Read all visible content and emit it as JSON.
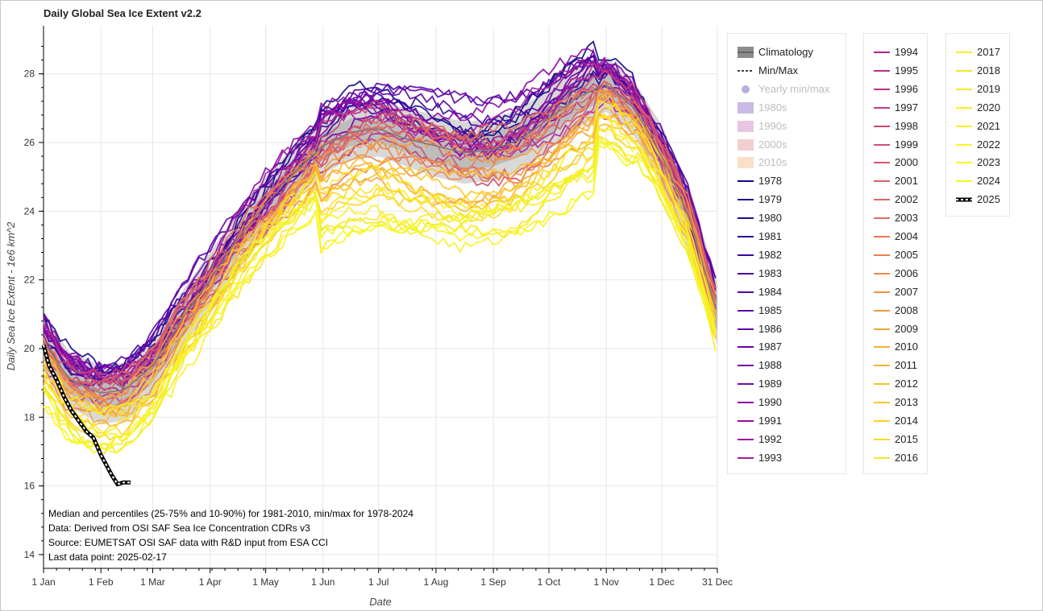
{
  "chart_data": {
    "type": "line",
    "title": "Daily Global Sea Ice Extent v2.2",
    "xlabel": "Date",
    "ylabel": "Daily Sea Ice Extent - 1e6 km^2",
    "ylim": [
      13.6,
      29.4
    ],
    "x_ticks": [
      "1 Jan",
      "1 Feb",
      "1 Mar",
      "1 Apr",
      "1 May",
      "1 Jun",
      "1 Jul",
      "1 Aug",
      "1 Sep",
      "1 Oct",
      "1 Nov",
      "1 Dec",
      "31 Dec"
    ],
    "x_tick_days": [
      1,
      32,
      60,
      91,
      121,
      152,
      182,
      213,
      244,
      274,
      305,
      335,
      365
    ],
    "y_ticks": [
      14,
      16,
      18,
      20,
      22,
      24,
      26,
      28
    ],
    "grid": true,
    "legend_position": "right",
    "annotations": [
      "Median and percentiles (25-75% and 10-90%) for 1981-2010, min/max for 1978-2024",
      "Data: Derived from OSI SAF Sea Ice Concentration CDRs v3",
      "Source: EUMETSAT OSI SAF data with R&D input from ESA CCI",
      "Last data point: 2025-02-17"
    ],
    "legend_special": [
      {
        "label": "Climatology",
        "kind": "band",
        "color": "#8c8c8c",
        "active": true
      },
      {
        "label": "Min/Max",
        "kind": "dashed",
        "color": "#000000",
        "active": true
      },
      {
        "label": "Yearly min/max",
        "kind": "dot",
        "color": "#b3b0db",
        "active": false
      },
      {
        "label": "1980s",
        "kind": "band",
        "color": "#c9bbe3",
        "active": false
      },
      {
        "label": "1990s",
        "kind": "band",
        "color": "#e8c6e4",
        "active": false
      },
      {
        "label": "2000s",
        "kind": "band",
        "color": "#f2cfd0",
        "active": false
      },
      {
        "label": "2010s",
        "kind": "band",
        "color": "#f9e0c6",
        "active": false
      }
    ],
    "years": [
      "1978",
      "1979",
      "1980",
      "1981",
      "1982",
      "1983",
      "1984",
      "1985",
      "1986",
      "1987",
      "1988",
      "1989",
      "1990",
      "1991",
      "1992",
      "1993",
      "1994",
      "1995",
      "1996",
      "1997",
      "1998",
      "1999",
      "2000",
      "2001",
      "2002",
      "2003",
      "2004",
      "2005",
      "2006",
      "2007",
      "2008",
      "2009",
      "2010",
      "2011",
      "2012",
      "2013",
      "2014",
      "2015",
      "2016",
      "2017",
      "2018",
      "2019",
      "2020",
      "2021",
      "2022",
      "2023",
      "2024",
      "2025"
    ],
    "year_colors": [
      "#0d0887",
      "#190788",
      "#240691",
      "#2f0596",
      "#3a049a",
      "#45039e",
      "#4f02a2",
      "#5901a5",
      "#6300a7",
      "#6d00a8",
      "#7701a8",
      "#8104a7",
      "#8a09a5",
      "#930fa2",
      "#9c179e",
      "#a41e9a",
      "#ac2694",
      "#b42e8d",
      "#bb3587",
      "#c13e80",
      "#c8467a",
      "#cd4f73",
      "#d3576c",
      "#d85f66",
      "#dd6860",
      "#e1705a",
      "#e57853",
      "#e9814e",
      "#ed8a47",
      "#f09342",
      "#f39b3c",
      "#f6a437",
      "#f8ad32",
      "#f9b62d",
      "#fbbf2a",
      "#fcc826",
      "#fcd225",
      "#fcdb25",
      "#fbe426",
      "#fbed27",
      "#f3e527",
      "#f5ea26",
      "#f7ee25",
      "#f9f024",
      "#f9f324",
      "#faf523",
      "#f0f921",
      "#000000"
    ],
    "series": [
      {
        "name": "Median 1981-2010",
        "x": [
          1,
          15,
          32,
          45,
          60,
          75,
          91,
          106,
          121,
          136,
          152,
          167,
          182,
          197,
          213,
          228,
          244,
          259,
          274,
          289,
          305,
          320,
          335,
          350,
          365
        ],
        "y": [
          20.2,
          19.1,
          18.7,
          18.8,
          19.5,
          20.8,
          22.0,
          23.2,
          24.2,
          25.1,
          25.9,
          26.3,
          26.4,
          26.1,
          25.9,
          25.7,
          25.8,
          26.1,
          26.7,
          27.3,
          27.7,
          27.0,
          25.6,
          23.8,
          21.0
        ]
      },
      {
        "name": "Climatology 25%",
        "x": [
          1,
          15,
          32,
          45,
          60,
          75,
          91,
          106,
          121,
          136,
          152,
          167,
          182,
          197,
          213,
          228,
          244,
          259,
          274,
          289,
          305,
          320,
          335,
          350,
          365
        ],
        "y": [
          19.8,
          18.7,
          18.3,
          18.3,
          19.0,
          20.3,
          21.6,
          22.8,
          23.8,
          24.7,
          25.5,
          25.9,
          26.0,
          25.7,
          25.4,
          25.2,
          25.3,
          25.6,
          26.2,
          26.8,
          27.3,
          26.6,
          25.1,
          23.2,
          20.5
        ]
      },
      {
        "name": "Climatology 75%",
        "x": [
          1,
          15,
          32,
          45,
          60,
          75,
          91,
          106,
          121,
          136,
          152,
          167,
          182,
          197,
          213,
          228,
          244,
          259,
          274,
          289,
          305,
          320,
          335,
          350,
          365
        ],
        "y": [
          20.6,
          19.5,
          19.1,
          19.2,
          19.9,
          21.2,
          22.4,
          23.6,
          24.6,
          25.5,
          26.3,
          26.7,
          26.8,
          26.6,
          26.4,
          26.2,
          26.3,
          26.6,
          27.2,
          27.8,
          28.1,
          27.4,
          26.1,
          24.3,
          21.5
        ]
      },
      {
        "name": "Climatology 10%",
        "x": [
          1,
          15,
          32,
          45,
          60,
          75,
          91,
          106,
          121,
          136,
          152,
          167,
          182,
          197,
          213,
          228,
          244,
          259,
          274,
          289,
          305,
          320,
          335,
          350,
          365
        ],
        "y": [
          19.4,
          18.3,
          17.8,
          17.9,
          18.6,
          19.9,
          21.2,
          22.4,
          23.4,
          24.3,
          25.1,
          25.5,
          25.6,
          25.3,
          25.0,
          24.8,
          24.9,
          25.2,
          25.8,
          26.4,
          26.9,
          26.2,
          24.7,
          22.8,
          20.1
        ]
      },
      {
        "name": "Climatology 90%",
        "x": [
          1,
          15,
          32,
          45,
          60,
          75,
          91,
          106,
          121,
          136,
          152,
          167,
          182,
          197,
          213,
          228,
          244,
          259,
          274,
          289,
          305,
          320,
          335,
          350,
          365
        ],
        "y": [
          21.0,
          19.9,
          19.5,
          19.6,
          20.3,
          21.6,
          22.8,
          24.0,
          25.0,
          25.9,
          26.7,
          27.1,
          27.2,
          27.0,
          26.8,
          26.6,
          26.7,
          27.0,
          27.6,
          28.2,
          28.5,
          27.8,
          26.5,
          24.7,
          21.9
        ]
      },
      {
        "name": "2025",
        "x": [
          1,
          4,
          8,
          12,
          16,
          20,
          24,
          28,
          32,
          35,
          38,
          41,
          44,
          48
        ],
        "y": [
          20.1,
          19.5,
          19.1,
          18.6,
          18.2,
          17.9,
          17.6,
          17.4,
          16.9,
          16.6,
          16.3,
          16.05,
          16.1,
          16.1
        ]
      }
    ]
  }
}
